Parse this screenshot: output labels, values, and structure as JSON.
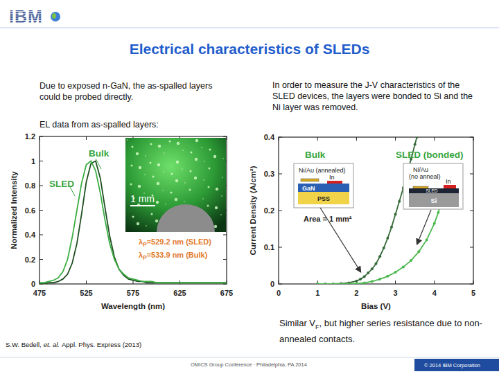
{
  "slide": {
    "logo": "IBM",
    "title": "Electrical characteristics of SLEDs",
    "left_text": "Due to exposed n-GaN, the as-spalled layers could be probed directly.",
    "right_text": "In order to measure the J-V characteristics of the SLED devices, the layers were bonded to Si and the Ni layer was removed.",
    "el_heading": "EL data from as-spalled layers:",
    "caption": {
      "before": "Similar V",
      "subscript": "F",
      "after": ", but higher series resistance due to non-annealed contacts."
    },
    "citation": {
      "authors": "S.W. Bedell,",
      "et_al": "et. al.",
      "journal": "Appl. Phys. Express (2013)"
    },
    "footer": "OMICS Group Conference · Philadelphia, PA 2014",
    "copyright": "© 2014 IBM Corporation"
  },
  "chart_data": [
    {
      "type": "line",
      "x_label": "Wavelength (nm)",
      "y_label": "Normalized Intensity",
      "xlim": [
        475,
        675
      ],
      "xticks": [
        475,
        525,
        575,
        625,
        675
      ],
      "ylim": [
        0,
        1.2
      ],
      "yticks": [
        0,
        0.2,
        0.4,
        0.6,
        0.8,
        1,
        1.2
      ],
      "grid": false,
      "x": [
        475,
        480,
        485,
        490,
        495,
        500,
        505,
        510,
        515,
        520,
        525,
        530,
        535,
        540,
        545,
        550,
        555,
        560,
        565,
        570,
        575,
        580,
        585,
        590,
        595,
        600,
        605,
        610,
        615,
        620,
        625,
        630,
        635,
        640,
        645,
        650,
        655,
        660,
        665,
        670,
        675
      ],
      "series": [
        {
          "name": "Bulk",
          "color": "#1f4f22",
          "line_style": "solid",
          "values": [
            0,
            0,
            0.01,
            0.01,
            0.02,
            0.04,
            0.08,
            0.17,
            0.33,
            0.57,
            0.83,
            0.98,
            1.0,
            0.86,
            0.62,
            0.39,
            0.22,
            0.12,
            0.07,
            0.04,
            0.03,
            0.02,
            0.02,
            0.01,
            0.01,
            0.01,
            0.01,
            0.01,
            0.01,
            0.01,
            0.01,
            0.01,
            0.01,
            0.01,
            0.01,
            0.01,
            0.01,
            0.01,
            0.01,
            0.01,
            0.01
          ]
        },
        {
          "name": "SLED",
          "color": "#3cae44",
          "line_style": "solid",
          "values": [
            0.01,
            0.01,
            0.02,
            0.03,
            0.05,
            0.1,
            0.2,
            0.38,
            0.6,
            0.82,
            0.97,
            1.0,
            0.92,
            0.74,
            0.52,
            0.33,
            0.2,
            0.12,
            0.08,
            0.05,
            0.04,
            0.03,
            0.02,
            0.02,
            0.02,
            0.01,
            0.01,
            0.01,
            0.01,
            0.01,
            0.01,
            0.01,
            0.01,
            0.01,
            0.01,
            0.01,
            0.01,
            0.01,
            0.01,
            0.01,
            0.01
          ]
        }
      ],
      "annotations": [
        {
          "text": "1 mm"
        },
        {
          "before": "λ",
          "subscript": "P",
          "after": "=529.2 nm (SLED)"
        },
        {
          "before": "λ",
          "subscript": "P",
          "after": "=533.9 nm (Bulk)"
        }
      ]
    },
    {
      "type": "line",
      "x_label": "Bias (V)",
      "y_label": "Current Density (A/cm²)",
      "xlim": [
        0,
        5
      ],
      "xticks": [
        0,
        1,
        2,
        3,
        4,
        5
      ],
      "ylim": [
        0,
        0.4
      ],
      "yticks": [
        0,
        0.1,
        0.2,
        0.3,
        0.4
      ],
      "grid": false,
      "series": [
        {
          "name": "Bulk",
          "color": "#356a38",
          "line_style": "solid",
          "marker": "circle",
          "x": [
            1.0,
            1.2,
            1.4,
            1.6,
            1.8,
            2.0,
            2.1,
            2.2,
            2.3,
            2.4,
            2.5,
            2.6,
            2.7,
            2.8,
            2.9,
            3.0,
            3.1,
            3.2,
            3.3,
            3.4,
            3.5,
            3.55
          ],
          "values": [
            0,
            0,
            0,
            0.001,
            0.003,
            0.008,
            0.013,
            0.02,
            0.03,
            0.041,
            0.055,
            0.075,
            0.098,
            0.125,
            0.155,
            0.19,
            0.225,
            0.262,
            0.3,
            0.34,
            0.38,
            0.4
          ]
        },
        {
          "name": "SLED (bonded)",
          "color": "#4cb84f",
          "line_style": "solid",
          "marker": "circle",
          "x": [
            1.0,
            1.4,
            1.8,
            2.0,
            2.2,
            2.4,
            2.6,
            2.8,
            3.0,
            3.2,
            3.4,
            3.6,
            3.8,
            4.0,
            4.1,
            4.2,
            4.3
          ],
          "values": [
            0,
            0,
            0,
            0.001,
            0.003,
            0.007,
            0.013,
            0.021,
            0.032,
            0.046,
            0.064,
            0.088,
            0.12,
            0.165,
            0.195,
            0.23,
            0.27
          ]
        }
      ],
      "annotations": [
        {
          "text": "Ni/Au (annealed)"
        },
        {
          "text": "In"
        },
        {
          "text": "GaN"
        },
        {
          "text": "PSS"
        },
        {
          "lines": [
            "Ni/Au",
            "(no anneal)"
          ]
        },
        {
          "text": "In"
        },
        {
          "text": "SLED"
        },
        {
          "text": "Si"
        },
        {
          "text": "Area = 1 mm²"
        }
      ]
    }
  ]
}
